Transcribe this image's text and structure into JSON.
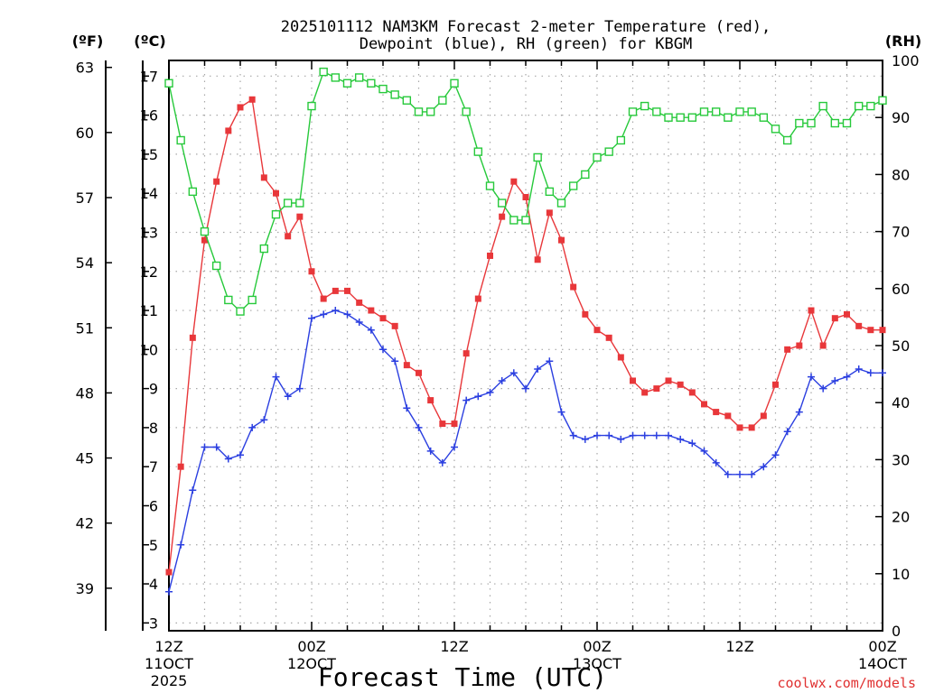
{
  "chart_data": {
    "type": "line",
    "title_lines": [
      "2025101112 NAM3KM Forecast 2-meter Temperature (red),",
      "Dewpoint (blue), RH (green) for KBGM"
    ],
    "xlabel": "Forecast Time (UTC)",
    "credit": "coolwx.com/models",
    "units": {
      "f": "(ºF)",
      "c": "(ºC)",
      "rh": "(RH)"
    },
    "x_unit": "forecast hour",
    "xlim": [
      0,
      60
    ],
    "x_ticks": [
      {
        "x": 0,
        "lines": [
          "12Z",
          "11OCT",
          "2025"
        ]
      },
      {
        "x": 12,
        "lines": [
          "00Z",
          "12OCT"
        ]
      },
      {
        "x": 24,
        "lines": [
          "12Z"
        ]
      },
      {
        "x": 36,
        "lines": [
          "00Z",
          "13OCT"
        ]
      },
      {
        "x": 48,
        "lines": [
          "12Z"
        ]
      },
      {
        "x": 60,
        "lines": [
          "00Z",
          "14OCT"
        ]
      }
    ],
    "celsius_axis": {
      "range": [
        2.8,
        17.4
      ],
      "ticks": [
        3,
        4,
        5,
        6,
        7,
        8,
        9,
        10,
        11,
        12,
        13,
        14,
        15,
        16,
        17
      ]
    },
    "fahrenheit_axis": {
      "ticks": [
        39,
        42,
        45,
        48,
        51,
        54,
        57,
        60,
        63
      ]
    },
    "rh_axis": {
      "range": [
        0,
        100
      ],
      "ticks": [
        0,
        10,
        20,
        30,
        40,
        50,
        60,
        70,
        80,
        90,
        100
      ]
    },
    "x": [
      0,
      1,
      2,
      3,
      4,
      5,
      6,
      7,
      8,
      9,
      10,
      11,
      12,
      13,
      14,
      15,
      16,
      17,
      18,
      19,
      20,
      21,
      22,
      23,
      24,
      25,
      26,
      27,
      28,
      29,
      30,
      31,
      32,
      33,
      34,
      35,
      36,
      37,
      38,
      39,
      40,
      41,
      42,
      43,
      44,
      45,
      46,
      47,
      48,
      49,
      50,
      51,
      52,
      53,
      54,
      55,
      56,
      57,
      58,
      59,
      60
    ],
    "series": [
      {
        "name": "Temperature",
        "axis": "C",
        "color": "#e8373a",
        "marker": "filled-square",
        "values": [
          4.3,
          7.0,
          10.3,
          12.8,
          14.3,
          15.6,
          16.2,
          16.4,
          14.4,
          14.0,
          12.9,
          13.4,
          12.0,
          11.3,
          11.5,
          11.5,
          11.2,
          11.0,
          10.8,
          10.6,
          9.6,
          9.4,
          8.7,
          8.1,
          8.1,
          9.9,
          11.3,
          12.4,
          13.4,
          14.3,
          13.9,
          12.3,
          13.5,
          12.8,
          11.6,
          10.9,
          10.5,
          10.3,
          9.8,
          9.2,
          8.9,
          9.0,
          9.2,
          9.1,
          8.9,
          8.6,
          8.4,
          8.3,
          8.0,
          8.0,
          8.3,
          9.1,
          10.0,
          10.1,
          11.0,
          10.1,
          10.8,
          10.9,
          10.6,
          10.5,
          10.5
        ]
      },
      {
        "name": "Dewpoint",
        "axis": "C",
        "color": "#2b3fe0",
        "marker": "plus",
        "values": [
          3.8,
          5.0,
          6.4,
          7.5,
          7.5,
          7.2,
          7.3,
          8.0,
          8.2,
          9.3,
          8.8,
          9.0,
          10.8,
          10.9,
          11.0,
          10.9,
          10.7,
          10.5,
          10.0,
          9.7,
          8.5,
          8.0,
          7.4,
          7.1,
          7.5,
          8.7,
          8.8,
          8.9,
          9.2,
          9.4,
          9.0,
          9.5,
          9.7,
          8.4,
          7.8,
          7.7,
          7.8,
          7.8,
          7.7,
          7.8,
          7.8,
          7.8,
          7.8,
          7.7,
          7.6,
          7.4,
          7.1,
          6.8,
          6.8,
          6.8,
          7.0,
          7.3,
          7.9,
          8.4,
          9.3,
          9.0,
          9.2,
          9.3,
          9.5,
          9.4,
          9.4
        ]
      },
      {
        "name": "RH",
        "axis": "RH",
        "color": "#27c93b",
        "marker": "open-square",
        "values": [
          96,
          86,
          77,
          70,
          64,
          58,
          56,
          58,
          67,
          73,
          75,
          75,
          92,
          98,
          97,
          96,
          97,
          96,
          95,
          94,
          93,
          91,
          91,
          93,
          96,
          91,
          84,
          78,
          75,
          72,
          72,
          83,
          77,
          75,
          78,
          80,
          83,
          84,
          86,
          91,
          92,
          91,
          90,
          90,
          90,
          91,
          91,
          90,
          91,
          91,
          90,
          88,
          86,
          89,
          89,
          92,
          89,
          89,
          92,
          92,
          93
        ]
      }
    ]
  }
}
